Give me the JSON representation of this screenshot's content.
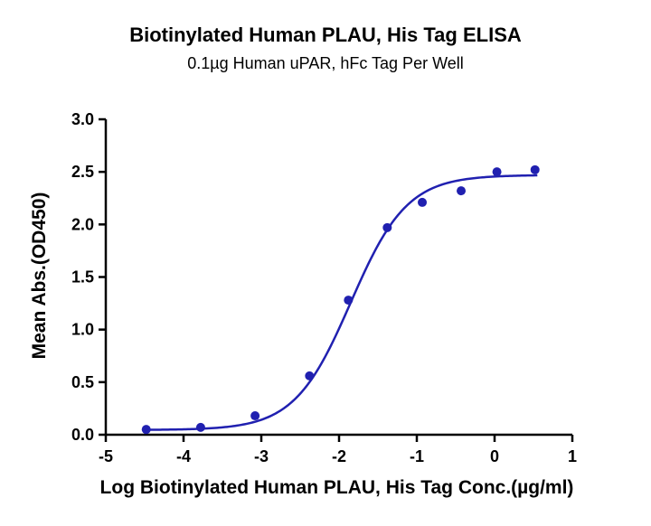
{
  "chart_data": {
    "type": "scatter",
    "title": "Biotinylated Human  PLAU, His Tag ELISA",
    "subtitle": "0.1µg Human uPAR, hFc Tag Per Well",
    "xlabel": "Log Biotinylated Human  PLAU, His Tag Conc.(µg/ml)",
    "ylabel": "Mean Abs.(OD450)",
    "xlim": [
      -5,
      1
    ],
    "ylim": [
      0,
      3.0
    ],
    "xticks": [
      "-5",
      "-4",
      "-3",
      "-2",
      "-1",
      "0",
      "1"
    ],
    "yticks": [
      "0.0",
      "0.5",
      "1.0",
      "1.5",
      "2.0",
      "2.5",
      "3.0"
    ],
    "series": [
      {
        "x": [
          -4.48,
          -3.78,
          -3.08,
          -2.38,
          -1.88,
          -1.38,
          -0.93,
          -0.43,
          0.03,
          0.52
        ],
        "y": [
          0.05,
          0.07,
          0.18,
          0.56,
          1.28,
          1.97,
          2.21,
          2.32,
          2.5,
          2.52
        ]
      }
    ],
    "fit_curve": {
      "bottom": 0.045,
      "top": 2.47,
      "logEC50": -1.85,
      "hill": 1.2,
      "x_range": [
        -4.5,
        0.55
      ]
    },
    "colors": {
      "series": "#2020b0",
      "axis": "#000000"
    },
    "grid": false,
    "legend": "none"
  }
}
